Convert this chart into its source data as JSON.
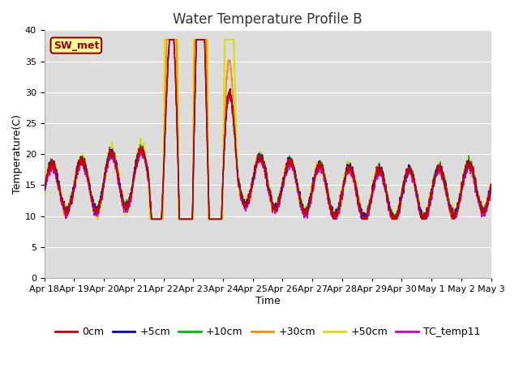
{
  "title": "Water Temperature Profile B",
  "xlabel": "Time",
  "ylabel": "Temperature(C)",
  "ylim": [
    0,
    40
  ],
  "yticks": [
    0,
    5,
    10,
    15,
    20,
    25,
    30,
    35,
    40
  ],
  "plot_bg": "#dcdcdc",
  "fig_bg": "#ffffff",
  "annotation_text": "SW_met",
  "annotation_bg": "#ffff99",
  "annotation_fg": "#990000",
  "lines": {
    "0cm": {
      "color": "#cc0000",
      "lw": 1.0,
      "zorder": 3
    },
    "+5cm": {
      "color": "#0000cc",
      "lw": 1.0,
      "zorder": 3
    },
    "+10cm": {
      "color": "#00bb00",
      "lw": 1.0,
      "zorder": 3
    },
    "+30cm": {
      "color": "#ff8800",
      "lw": 1.2,
      "zorder": 2
    },
    "+50cm": {
      "color": "#dddd00",
      "lw": 1.5,
      "zorder": 1
    },
    "TC_temp11": {
      "color": "#cc00cc",
      "lw": 1.0,
      "zorder": 3
    }
  },
  "x_tick_labels": [
    "Apr 18",
    "Apr 19",
    "Apr 20",
    "Apr 21",
    "Apr 22",
    "Apr 23",
    "Apr 24",
    "Apr 25",
    "Apr 26",
    "Apr 27",
    "Apr 28",
    "Apr 29",
    "Apr 30",
    "May 1",
    "May 2",
    "May 3"
  ],
  "n_days": 15,
  "pts_per_day": 144,
  "title_fontsize": 12,
  "tick_fontsize": 8,
  "legend_fontsize": 9,
  "grid_color": "#ffffff",
  "grid_lw": 0.8
}
